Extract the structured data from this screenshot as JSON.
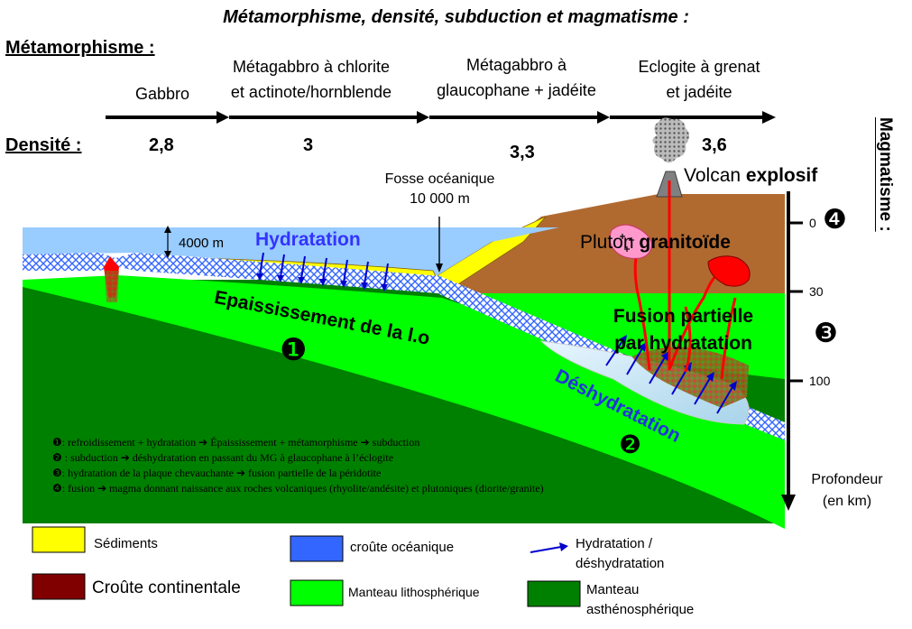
{
  "title": "Métamorphisme, densité, subduction et magmatisme :",
  "metamorphisme": {
    "label": "Métamorphisme :",
    "stages": [
      {
        "line1": "Gabbro",
        "line2": ""
      },
      {
        "line1": "Métagabbro à chlorite",
        "line2": "et actinote/hornblende"
      },
      {
        "line1": "Métagabbro à",
        "line2": "glaucophane + jadéite"
      },
      {
        "line1": "Eclogite à grenat",
        "line2": "et jadéite"
      }
    ]
  },
  "densite": {
    "label": "Densité :",
    "values": [
      "2,8",
      "3",
      "3,3",
      "3,6"
    ]
  },
  "magmatisme_label": "Magmatisme :",
  "diagram": {
    "volcan_prefix": "Volcan ",
    "volcan_bold": "explosif",
    "fosse_line1": "Fosse océanique",
    "fosse_line2": "10 000 m",
    "depth_4000": "4000 m",
    "hydratation": "Hydratation",
    "epaississement": "Epaississement de la l.o",
    "deshydratation": "Déshydratation",
    "pluton_prefix": "Pluton ",
    "pluton_bold": "granitoïde",
    "fusion_line1": "Fusion partielle",
    "fusion_line2": "par hydratation",
    "markers": {
      "m1": "❶",
      "m2": "❷",
      "m3": "❸",
      "m4": "❹"
    }
  },
  "depth_scale": {
    "ticks": [
      "0",
      "30",
      "100"
    ],
    "label_line1": "Profondeur",
    "label_line2": "(en km)"
  },
  "notes": [
    "❶: refroidissement + hydratation  ➔ Épaississement + métamorphisme ➔ subduction",
    "❷ : subduction ➔ déshydratation en passant du MG à glaucophane à l’éclogite",
    "❸: hydratation de la plaque chevauchante ➔ fusion partielle de la péridotite",
    "❹: fusion ➔ magma donnant naissance aux roches volcaniques (rhyolite/andésite) et plutoniques (diorite/granite)"
  ],
  "legend": {
    "sediments": "Sédiments",
    "croute_oceanique": "croûte océanique",
    "hydratation_line1": "Hydratation /",
    "hydratation_line2": "déshydratation",
    "croute_continentale": "Croûte continentale",
    "manteau_litho": "Manteau lithosphérique",
    "manteau_astheno_line1": "Manteau",
    "manteau_astheno_line2": "asthénosphérique"
  },
  "colors": {
    "sediments": "#ffff00",
    "croute_oceanique": "#3366ff",
    "croute_continentale": "#800000",
    "continent_fill": "#b06a30",
    "manteau_litho": "#00ff00",
    "manteau_astheno": "#008000",
    "ocean": "#99ccff",
    "arrow": "#0000cc",
    "magma": "#ff0000"
  }
}
